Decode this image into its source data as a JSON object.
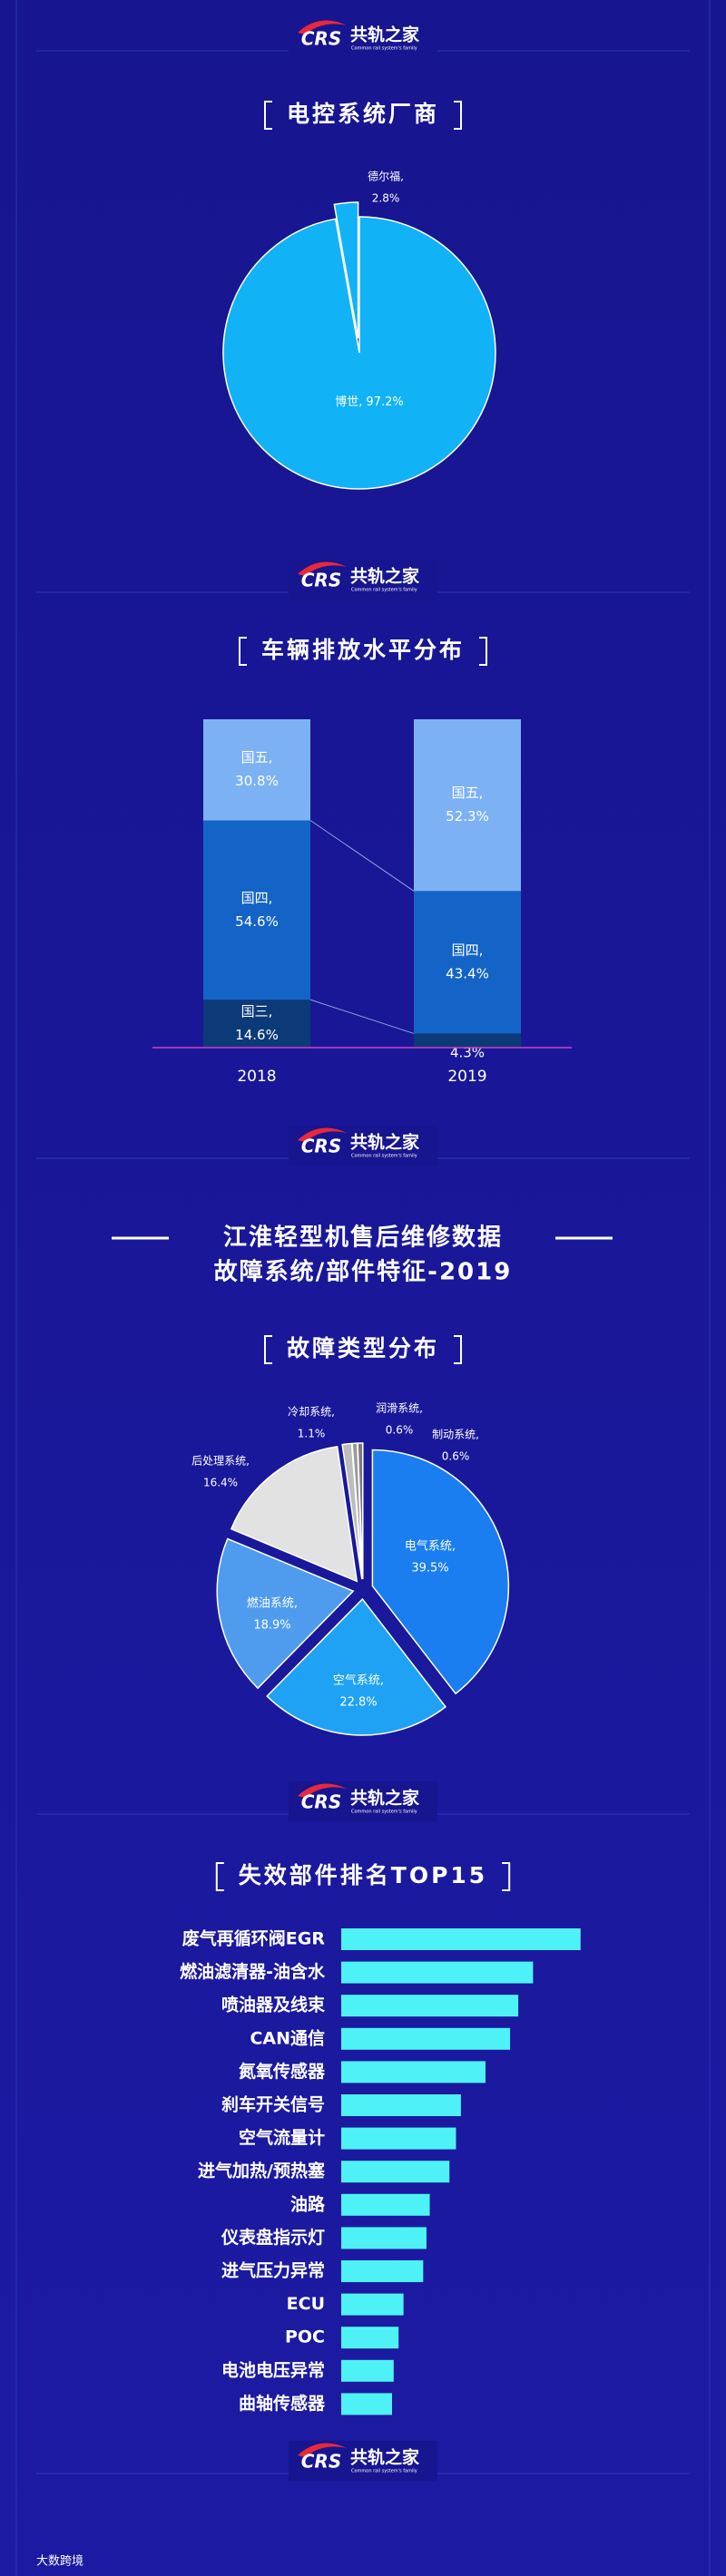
{
  "brand": {
    "logo": "CRS",
    "name": "共轨之家",
    "tagline": "Common rail system's family"
  },
  "section": {
    "title": "江淮轻型机售后维修数据",
    "subtitle": "故障系统/部件特征-2019"
  },
  "footer": "大数跨境",
  "chart_data": [
    {
      "type": "pie",
      "title": "电控系统厂商",
      "categories": [
        "博世,",
        "德尔福,"
      ],
      "values": [
        97.2,
        2.8
      ],
      "value_labels": [
        "97.2%",
        "2.8%"
      ],
      "colors": [
        "#12b2f6",
        "#12b2f6"
      ]
    },
    {
      "type": "bar",
      "stacked": true,
      "title": "车辆排放水平分布",
      "categories": [
        "2018",
        "2019"
      ],
      "ylim": [
        0,
        100
      ],
      "series": [
        {
          "name": "国三,",
          "color": "#0c3a78",
          "values": [
            14.6,
            4.3
          ],
          "value_labels": [
            "14.6%",
            "4.3%"
          ]
        },
        {
          "name": "国四,",
          "color": "#1464c8",
          "values": [
            54.6,
            43.4
          ],
          "value_labels": [
            "54.6%",
            "43.4%"
          ]
        },
        {
          "name": "国五,",
          "color": "#7cb2f4",
          "values": [
            30.8,
            52.3
          ],
          "value_labels": [
            "30.8%",
            "52.3%"
          ]
        }
      ]
    },
    {
      "type": "pie",
      "title": "故障类型分布",
      "categories": [
        "电气系统,",
        "空气系统,",
        "燃油系统,",
        "后处理系统,",
        "冷却系统,",
        "润滑系统,",
        "制动系统,"
      ],
      "values": [
        39.5,
        22.8,
        18.9,
        16.4,
        1.1,
        0.6,
        0.6
      ],
      "value_labels": [
        "39.5%",
        "22.8%",
        "18.9%",
        "16.4%",
        "1.1%",
        "0.6%",
        "0.6%"
      ],
      "colors": [
        "#1a7ef0",
        "#1fa2f4",
        "#4f9cef",
        "#e2e2e2",
        "#bdbdbd",
        "#9a9a9a",
        "#7a7a7a"
      ]
    },
    {
      "type": "bar",
      "orientation": "horizontal",
      "title": "失效部件排名TOP15",
      "color": "#4ef2f6",
      "categories": [
        "废气再循环阀EGR",
        "燃油滤清器-油含水",
        "喷油器及线束",
        "CAN通信",
        "氮氧传感器",
        "刹车开关信号",
        "空气流量计",
        "进气加热/预热塞",
        "油路",
        "仪表盘指示灯",
        "进气压力异常",
        "ECU",
        "POC",
        "电池电压异常",
        "曲轴传感器"
      ],
      "values": [
        146,
        117,
        108,
        103,
        88,
        73,
        70,
        66,
        54,
        52,
        50,
        38,
        35,
        32,
        31
      ],
      "xlim": [
        0,
        150
      ]
    }
  ]
}
